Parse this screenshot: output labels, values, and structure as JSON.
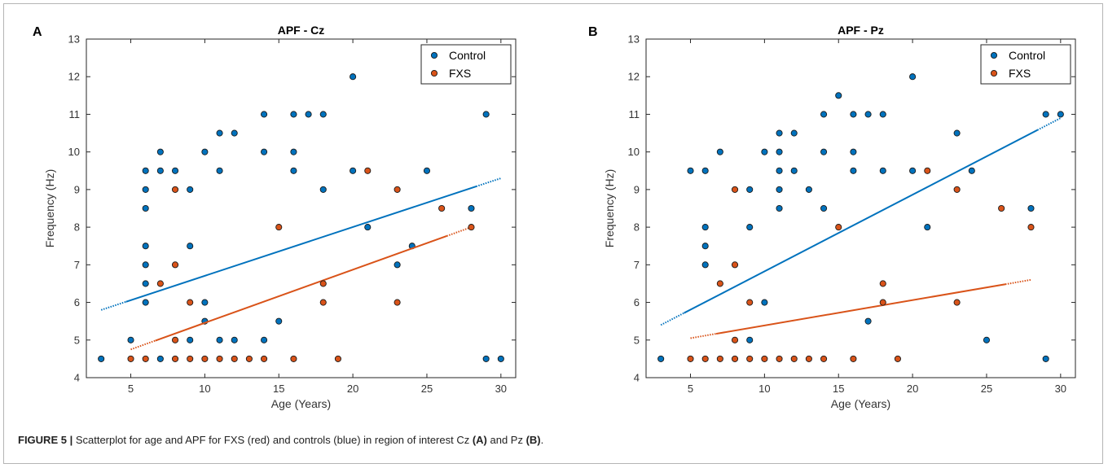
{
  "caption": {
    "figure_label": "FIGURE 5 |",
    "part1": " Scatterplot for age and APF for FXS (red) and controls (blue) in region of interest Cz ",
    "ref_a": "(A)",
    "part2": " and Pz ",
    "ref_b": "(B)",
    "part3": "."
  },
  "colors": {
    "control": "#0072BD",
    "fxs": "#D95319"
  },
  "chart_data": [
    {
      "type": "scatter",
      "panel_label": "A",
      "title": "APF - Cz",
      "xlabel": "Age (Years)",
      "ylabel": "Frequency (Hz)",
      "xlim": [
        2,
        31
      ],
      "ylim": [
        4,
        13
      ],
      "xticks": [
        5,
        10,
        15,
        20,
        25,
        30
      ],
      "yticks": [
        4,
        5,
        6,
        7,
        8,
        9,
        10,
        11,
        12,
        13
      ],
      "legend": "top-right",
      "series": [
        {
          "name": "Control",
          "color": "#0072BD",
          "points": [
            [
              3,
              4.5
            ],
            [
              5,
              5
            ],
            [
              6,
              6
            ],
            [
              6,
              6.5
            ],
            [
              6,
              7
            ],
            [
              6,
              7.5
            ],
            [
              6,
              8.5
            ],
            [
              6,
              9
            ],
            [
              6,
              9.5
            ],
            [
              7,
              4.5
            ],
            [
              7,
              9.5
            ],
            [
              7,
              10
            ],
            [
              8,
              9.5
            ],
            [
              9,
              5
            ],
            [
              9,
              7.5
            ],
            [
              9,
              9
            ],
            [
              10,
              5.5
            ],
            [
              10,
              6
            ],
            [
              10,
              10
            ],
            [
              11,
              5
            ],
            [
              11,
              9.5
            ],
            [
              11,
              10.5
            ],
            [
              12,
              5
            ],
            [
              12,
              10.5
            ],
            [
              14,
              5
            ],
            [
              14,
              10
            ],
            [
              14,
              11
            ],
            [
              15,
              5.5
            ],
            [
              16,
              9.5
            ],
            [
              16,
              10
            ],
            [
              16,
              11
            ],
            [
              17,
              11
            ],
            [
              18,
              9
            ],
            [
              18,
              11
            ],
            [
              20,
              9.5
            ],
            [
              20,
              12
            ],
            [
              21,
              8
            ],
            [
              23,
              7
            ],
            [
              24,
              7.5
            ],
            [
              25,
              9.5
            ],
            [
              28,
              8.5
            ],
            [
              29,
              4.5
            ],
            [
              29,
              11
            ],
            [
              30,
              4.5
            ]
          ],
          "trend": [
            [
              3,
              5.8
            ],
            [
              30,
              9.3
            ]
          ]
        },
        {
          "name": "FXS",
          "color": "#D95319",
          "points": [
            [
              5,
              4.5
            ],
            [
              6,
              4.5
            ],
            [
              7,
              6.5
            ],
            [
              8,
              4.5
            ],
            [
              8,
              5
            ],
            [
              8,
              7
            ],
            [
              8,
              9
            ],
            [
              9,
              4.5
            ],
            [
              9,
              6
            ],
            [
              10,
              4.5
            ],
            [
              11,
              4.5
            ],
            [
              12,
              4.5
            ],
            [
              13,
              4.5
            ],
            [
              14,
              4.5
            ],
            [
              15,
              8
            ],
            [
              16,
              4.5
            ],
            [
              18,
              6
            ],
            [
              18,
              6.5
            ],
            [
              19,
              4.5
            ],
            [
              21,
              9.5
            ],
            [
              23,
              6
            ],
            [
              23,
              9
            ],
            [
              26,
              8.5
            ],
            [
              28,
              8
            ]
          ],
          "trend": [
            [
              5,
              4.75
            ],
            [
              28,
              8
            ]
          ]
        }
      ]
    },
    {
      "type": "scatter",
      "panel_label": "B",
      "title": "APF - Pz",
      "xlabel": "Age (Years)",
      "ylabel": "Frequency (Hz)",
      "xlim": [
        2,
        31
      ],
      "ylim": [
        4,
        13
      ],
      "xticks": [
        5,
        10,
        15,
        20,
        25,
        30
      ],
      "yticks": [
        4,
        5,
        6,
        7,
        8,
        9,
        10,
        11,
        12,
        13
      ],
      "legend": "top-right",
      "series": [
        {
          "name": "Control",
          "color": "#0072BD",
          "points": [
            [
              3,
              4.5
            ],
            [
              5,
              9.5
            ],
            [
              6,
              7
            ],
            [
              6,
              7.5
            ],
            [
              6,
              8
            ],
            [
              6,
              9.5
            ],
            [
              7,
              10
            ],
            [
              9,
              5
            ],
            [
              9,
              8
            ],
            [
              9,
              9
            ],
            [
              10,
              6
            ],
            [
              10,
              10
            ],
            [
              11,
              8.5
            ],
            [
              11,
              9
            ],
            [
              11,
              9.5
            ],
            [
              11,
              10
            ],
            [
              11,
              10.5
            ],
            [
              12,
              9.5
            ],
            [
              12,
              10.5
            ],
            [
              13,
              9
            ],
            [
              14,
              8.5
            ],
            [
              14,
              10
            ],
            [
              14,
              11
            ],
            [
              15,
              11.5
            ],
            [
              16,
              9.5
            ],
            [
              16,
              10
            ],
            [
              16,
              11
            ],
            [
              17,
              5.5
            ],
            [
              17,
              11
            ],
            [
              18,
              9.5
            ],
            [
              18,
              11
            ],
            [
              20,
              9.5
            ],
            [
              20,
              12
            ],
            [
              21,
              8
            ],
            [
              23,
              10.5
            ],
            [
              24,
              9.5
            ],
            [
              25,
              5
            ],
            [
              28,
              8.5
            ],
            [
              29,
              4.5
            ],
            [
              29,
              11
            ],
            [
              30,
              11
            ]
          ],
          "trend": [
            [
              3,
              5.4
            ],
            [
              30,
              10.9
            ]
          ]
        },
        {
          "name": "FXS",
          "color": "#D95319",
          "points": [
            [
              5,
              4.5
            ],
            [
              6,
              4.5
            ],
            [
              7,
              4.5
            ],
            [
              7,
              6.5
            ],
            [
              8,
              4.5
            ],
            [
              8,
              5
            ],
            [
              8,
              7
            ],
            [
              8,
              9
            ],
            [
              9,
              4.5
            ],
            [
              9,
              6
            ],
            [
              10,
              4.5
            ],
            [
              11,
              4.5
            ],
            [
              12,
              4.5
            ],
            [
              13,
              4.5
            ],
            [
              14,
              4.5
            ],
            [
              15,
              8
            ],
            [
              16,
              4.5
            ],
            [
              18,
              6
            ],
            [
              18,
              6.5
            ],
            [
              19,
              4.5
            ],
            [
              21,
              9.5
            ],
            [
              23,
              6
            ],
            [
              23,
              9
            ],
            [
              26,
              8.5
            ],
            [
              28,
              8
            ]
          ],
          "trend": [
            [
              5,
              5.05
            ],
            [
              28,
              6.6
            ]
          ]
        }
      ]
    }
  ]
}
